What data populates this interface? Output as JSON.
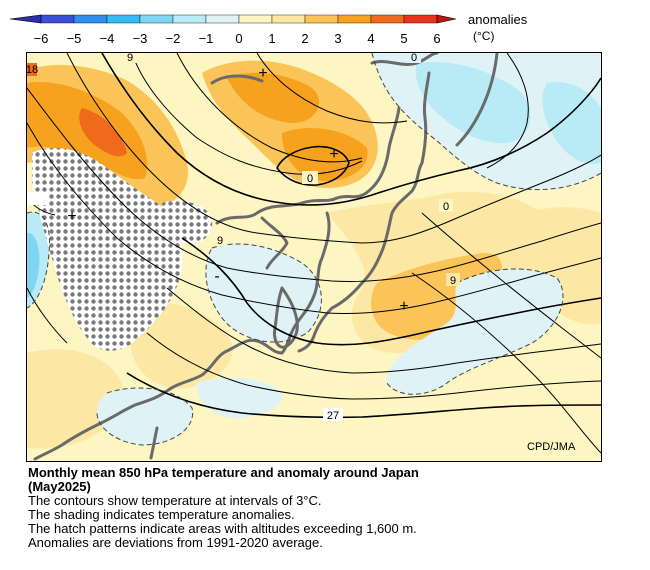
{
  "legend": {
    "title": "anomalies",
    "unit": "(°C)",
    "ticks": [
      "−6",
      "−5",
      "−4",
      "−3",
      "−2",
      "−1",
      "0",
      "1",
      "2",
      "3",
      "4",
      "5",
      "6"
    ],
    "colors": [
      "#3b4fd9",
      "#2f8ff0",
      "#33bdf2",
      "#7fd6f2",
      "#b8ebf5",
      "#dff3f7",
      "#fdf5c2",
      "#fce8a4",
      "#fbc458",
      "#f7a21e",
      "#ef6a1b",
      "#e8341c"
    ]
  },
  "map": {
    "colors": {
      "land": "#fdf5c2",
      "coast": "#6a6a6a",
      "contour": "#000000"
    },
    "contour_labels": [
      "0",
      "0",
      "0",
      "9",
      "9",
      "9",
      "18",
      "27"
    ],
    "anomaly_signs": [
      "+",
      "+",
      "+",
      "+",
      "-"
    ],
    "credit": "CPD/JMA"
  },
  "caption": {
    "title_line1": "Monthly mean 850 hPa temperature and anomaly around Japan",
    "title_line2": "(May2025)",
    "line1": "The contours show temperature at intervals of 3°C.",
    "line2": "The shading indicates temperature anomalies.",
    "line3": "The hatch patterns indicate areas with altitudes exceeding 1,600 m.",
    "line4": "Anomalies are deviations from 1991-2020 average."
  }
}
